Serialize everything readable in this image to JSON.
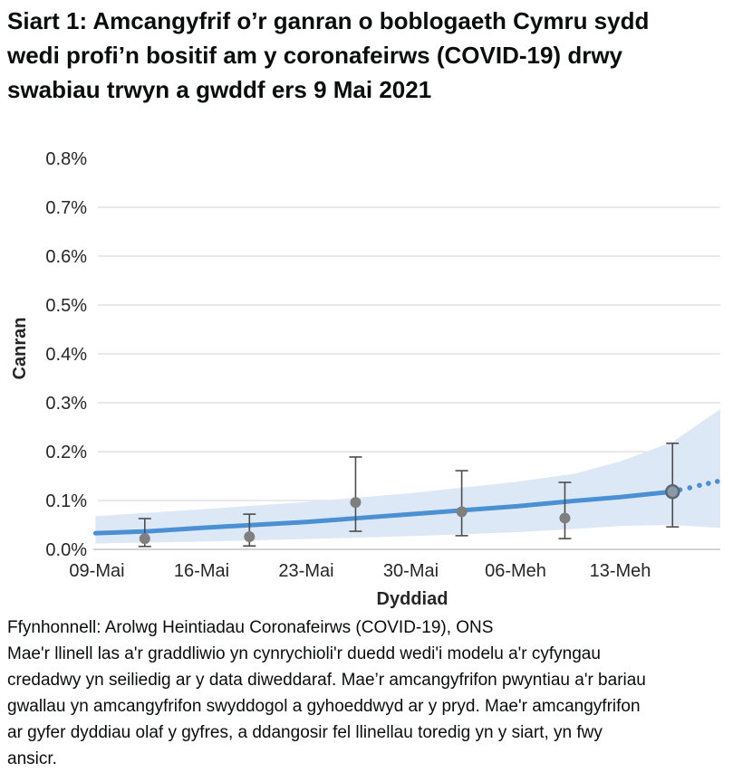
{
  "page": {
    "title": "Siart 1: Amcangyfrif o’r ganran o boblogaeth Cymru sydd wedi profi’n bositif am y coronafeirws (COVID-19) drwy swabiau trwyn a gwddf ers 9 Mai 2021"
  },
  "footer": {
    "source": "Ffynhonnell: Arolwg Heintiadau Coronafeirws (COVID-19), ONS",
    "note": "Mae'r llinell las a'r graddliwio yn cynrychioli'r duedd wedi'i modelu a'r cyfyngau credadwy yn seiliedig ar y data diweddaraf. Mae’r amcangyfrifon pwyntiau a'r bariau gwallau yn amcangyfrifon swyddogol a gyhoeddwyd ar y pryd. Mae'r amcangyfrifon ar gyfer dyddiau olaf y gyfres, a ddangosir fel llinellau toredig yn y siart, yn fwy ansicr."
  },
  "chart_data": {
    "type": "line",
    "title": "Siart 1: Amcangyfrif o’r ganran o boblogaeth Cymru sydd wedi profi’n bositif am y coronafeirws (COVID-19) drwy swabiau trwyn a gwddf ers 9 Mai 2021",
    "xlabel": "Dyddiad",
    "ylabel": "Canran",
    "x_unit": "diwrnodau ers 09-Mai-2021",
    "ylim": [
      0,
      0.8
    ],
    "grid": "horizontal",
    "legend": "none",
    "colors": {
      "trend_line": "#4a90d2",
      "credible_band": "#dde8f6",
      "gridline": "#e2e2e2",
      "zero_axis": "#c6c6c6",
      "error_point": "#7f7f7f",
      "error_bar": "#4d4d4d",
      "ring_fill": "#8b98a6",
      "ring_stroke": "#5a6672",
      "text": "#262626"
    },
    "yticks": {
      "values": [
        0,
        0.1,
        0.2,
        0.3,
        0.4,
        0.5,
        0.6,
        0.7,
        0.8
      ],
      "labels": [
        "0.0%",
        "0.1%",
        "0.2%",
        "0.3%",
        "0.4%",
        "0.5%",
        "0.6%",
        "0.7%",
        "0.8%"
      ]
    },
    "xticks": {
      "days": [
        0,
        7,
        14,
        21,
        28,
        35
      ],
      "labels": [
        "09-Mai",
        "16-Mai",
        "23-Mai",
        "30-Mai",
        "06-Meh",
        "13-Meh"
      ]
    },
    "trend_line": {
      "name": "duedd wedi'i modelu",
      "points": [
        {
          "day": -0.1,
          "value": 0.033
        },
        {
          "day": 3.5,
          "value": 0.037
        },
        {
          "day": 7,
          "value": 0.044
        },
        {
          "day": 10.5,
          "value": 0.05
        },
        {
          "day": 14,
          "value": 0.056
        },
        {
          "day": 17.5,
          "value": 0.064
        },
        {
          "day": 21,
          "value": 0.072
        },
        {
          "day": 24.5,
          "value": 0.08
        },
        {
          "day": 28,
          "value": 0.088
        },
        {
          "day": 31.5,
          "value": 0.098
        },
        {
          "day": 35,
          "value": 0.107
        },
        {
          "day": 38.5,
          "value": 0.118
        }
      ],
      "dotted_extension": [
        {
          "day": 39.0,
          "value": 0.122
        },
        {
          "day": 39.65,
          "value": 0.126
        },
        {
          "day": 40.3,
          "value": 0.131
        },
        {
          "day": 40.9,
          "value": 0.135
        },
        {
          "day": 41.5,
          "value": 0.139
        }
      ]
    },
    "credible_band": {
      "name": "cyfyngau credadwy",
      "points": [
        {
          "day": -0.1,
          "low": 0.012,
          "high": 0.068
        },
        {
          "day": 7,
          "low": 0.016,
          "high": 0.082
        },
        {
          "day": 14,
          "low": 0.021,
          "high": 0.097
        },
        {
          "day": 21,
          "low": 0.027,
          "high": 0.115
        },
        {
          "day": 28,
          "low": 0.035,
          "high": 0.138
        },
        {
          "day": 32,
          "low": 0.042,
          "high": 0.155
        },
        {
          "day": 35,
          "low": 0.048,
          "high": 0.18
        },
        {
          "day": 38.5,
          "low": 0.05,
          "high": 0.22
        },
        {
          "day": 41.7,
          "low": 0.044,
          "high": 0.287
        }
      ]
    },
    "official_estimates": {
      "name": "amcangyfrifon pwyntiau a bariau gwallau",
      "points": [
        {
          "date": "12-Mai",
          "day": 3.2,
          "value": 0.022,
          "low": 0.006,
          "high": 0.063,
          "style": "dot"
        },
        {
          "date": "19-Mai",
          "day": 10.2,
          "value": 0.026,
          "low": 0.007,
          "high": 0.072,
          "style": "dot"
        },
        {
          "date": "26-Mai",
          "day": 17.3,
          "value": 0.096,
          "low": 0.037,
          "high": 0.189,
          "style": "dot"
        },
        {
          "date": "02-Meh",
          "day": 24.4,
          "value": 0.077,
          "low": 0.028,
          "high": 0.161,
          "style": "dot"
        },
        {
          "date": "09-Meh",
          "day": 31.3,
          "value": 0.064,
          "low": 0.022,
          "high": 0.137,
          "style": "dot"
        },
        {
          "date": "16-Meh",
          "day": 38.5,
          "value": 0.118,
          "low": 0.046,
          "high": 0.217,
          "style": "ring"
        }
      ]
    }
  }
}
